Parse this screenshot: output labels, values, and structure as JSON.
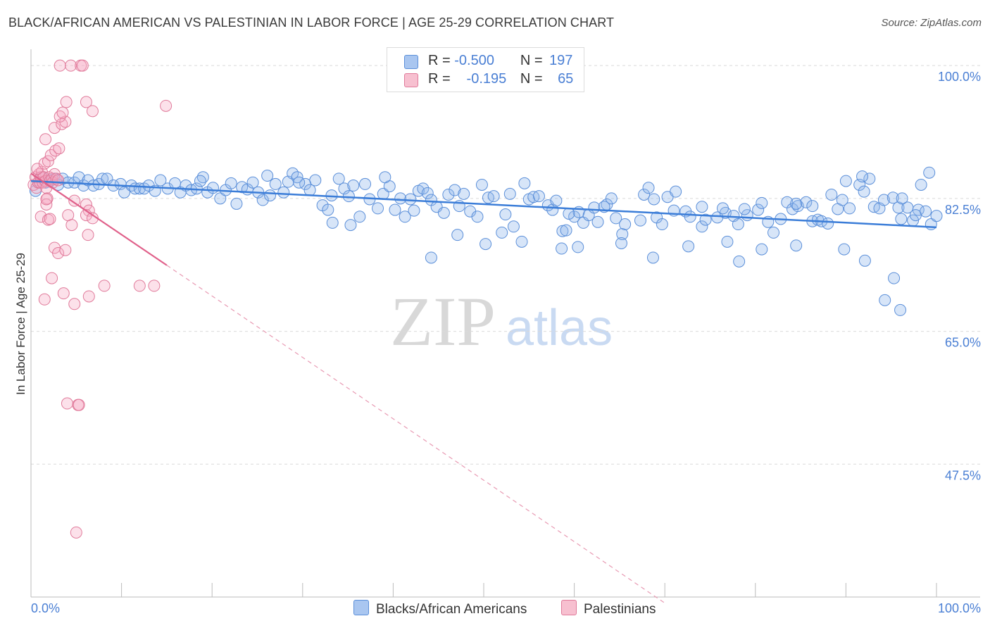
{
  "title": "BLACK/AFRICAN AMERICAN VS PALESTINIAN IN LABOR FORCE | AGE 25-29 CORRELATION CHART",
  "source": "Source: ZipAtlas.com",
  "watermark": {
    "zip": "ZIP",
    "atlas": "atlas"
  },
  "legend": {
    "r_label": "R =",
    "n_label": "N =",
    "rows": [
      {
        "r": "-0.500",
        "n": "197",
        "color": "#a9c6f0",
        "border": "#5b8fd9"
      },
      {
        "r": "-0.195",
        "n": "65",
        "color": "#f7c0d0",
        "border": "#e07a9a"
      }
    ]
  },
  "bottom_legend": [
    {
      "label": "Blacks/African Americans",
      "color": "#a9c6f0",
      "border": "#5b8fd9"
    },
    {
      "label": "Palestinians",
      "color": "#f7c0d0",
      "border": "#e07a9a"
    }
  ],
  "colors": {
    "blue": "#3b7dd8",
    "blue_fill": "rgba(140,180,235,0.35)",
    "pink": "#e0608a",
    "pink_fill": "rgba(245,170,195,0.35)",
    "tick_label": "#4a7fd4"
  },
  "chart_data": {
    "type": "scatter",
    "title": "BLACK/AFRICAN AMERICAN VS PALESTINIAN IN LABOR FORCE | AGE 25-29 CORRELATION CHART",
    "xlabel": "",
    "ylabel": "In Labor Force | Age 25-29",
    "xlim": [
      0,
      100
    ],
    "ylim": [
      30,
      101.5
    ],
    "x_tick_labels": [
      "0.0%",
      "100.0%"
    ],
    "y_ticks": [
      47.5,
      65.0,
      82.5,
      100.0
    ],
    "y_tick_labels": [
      "47.5%",
      "65.0%",
      "82.5%",
      "100.0%"
    ],
    "grid": true,
    "series": [
      {
        "name": "Blacks/African Americans",
        "trend": {
          "x": [
            0,
            100
          ],
          "y": [
            84.8,
            78.7
          ]
        },
        "points": [
          [
            0.5,
            83.5
          ],
          [
            0.8,
            84.6
          ],
          [
            1.2,
            85.3
          ],
          [
            1.6,
            84.6
          ],
          [
            2.2,
            84.9
          ],
          [
            2.6,
            85.1
          ],
          [
            3,
            84.3
          ],
          [
            3.5,
            85.1
          ],
          [
            4.1,
            84.6
          ],
          [
            4.8,
            84.6
          ],
          [
            5.3,
            85.3
          ],
          [
            5.8,
            84.2
          ],
          [
            6.3,
            84.9
          ],
          [
            6.9,
            84.2
          ],
          [
            7.5,
            84.4
          ],
          [
            7.9,
            85.1
          ],
          [
            8.4,
            85.1
          ],
          [
            9.1,
            84.2
          ],
          [
            9.9,
            84.4
          ],
          [
            10.3,
            83.3
          ],
          [
            11.1,
            84.2
          ],
          [
            11.5,
            83.8
          ],
          [
            12,
            83.8
          ],
          [
            12.5,
            83.8
          ],
          [
            13,
            84.2
          ],
          [
            13.7,
            83.5
          ],
          [
            14.3,
            84.9
          ],
          [
            15.1,
            83.8
          ],
          [
            15.9,
            84.5
          ],
          [
            16.5,
            83.3
          ],
          [
            17.1,
            84.2
          ],
          [
            17.7,
            83.6
          ],
          [
            18.3,
            83.8
          ],
          [
            19,
            85.3
          ],
          [
            19.5,
            83.3
          ],
          [
            20.1,
            83.9
          ],
          [
            20.9,
            82.5
          ],
          [
            21.5,
            83.6
          ],
          [
            22.1,
            84.5
          ],
          [
            22.7,
            81.8
          ],
          [
            23.3,
            84.0
          ],
          [
            23.9,
            83.7
          ],
          [
            24.5,
            84.6
          ],
          [
            25.1,
            83.3
          ],
          [
            25.6,
            82.3
          ],
          [
            26.4,
            82.9
          ],
          [
            27,
            84.4
          ],
          [
            27.9,
            83.3
          ],
          [
            28.4,
            84.7
          ],
          [
            28.9,
            85.8
          ],
          [
            29.4,
            85.3
          ],
          [
            30.3,
            84.4
          ],
          [
            30.8,
            83.6
          ],
          [
            31.4,
            84.9
          ],
          [
            32.2,
            81.6
          ],
          [
            32.8,
            81.0
          ],
          [
            33.2,
            82.9
          ],
          [
            34,
            85.1
          ],
          [
            34.6,
            83.8
          ],
          [
            35.1,
            82.8
          ],
          [
            35.6,
            84.2
          ],
          [
            36.3,
            80.1
          ],
          [
            36.9,
            84.4
          ],
          [
            37.4,
            82.4
          ],
          [
            38.3,
            81.2
          ],
          [
            38.9,
            83.1
          ],
          [
            39.6,
            84.1
          ],
          [
            40.2,
            81.0
          ],
          [
            40.8,
            82.5
          ],
          [
            41.3,
            80.1
          ],
          [
            41.9,
            82.4
          ],
          [
            42.3,
            80.9
          ],
          [
            42.8,
            83.5
          ],
          [
            43.3,
            83.8
          ],
          [
            43.8,
            83.2
          ],
          [
            44.2,
            82.3
          ],
          [
            44.8,
            81.4
          ],
          [
            45.6,
            80.6
          ],
          [
            46.1,
            83.0
          ],
          [
            46.8,
            83.6
          ],
          [
            47.3,
            81.5
          ],
          [
            47.8,
            83.1
          ],
          [
            48.5,
            80.8
          ],
          [
            49.3,
            80.1
          ],
          [
            50.5,
            82.6
          ],
          [
            51.1,
            82.8
          ],
          [
            52,
            78.0
          ],
          [
            52.4,
            80.4
          ],
          [
            52.9,
            83.1
          ],
          [
            53.3,
            78.8
          ],
          [
            54.5,
            84.5
          ],
          [
            55,
            82.4
          ],
          [
            55.5,
            82.7
          ],
          [
            56.1,
            82.8
          ],
          [
            57.1,
            81.6
          ],
          [
            57.6,
            81.0
          ],
          [
            58,
            82.2
          ],
          [
            58.7,
            78.2
          ],
          [
            59.1,
            78.3
          ],
          [
            60,
            80.1
          ],
          [
            60.5,
            80.7
          ],
          [
            61,
            79.3
          ],
          [
            61.6,
            80.3
          ],
          [
            62.2,
            81.3
          ],
          [
            62.6,
            79.4
          ],
          [
            63.6,
            81.7
          ],
          [
            64.1,
            82.5
          ],
          [
            64.6,
            79.9
          ],
          [
            65.3,
            77.8
          ],
          [
            65.6,
            79.1
          ],
          [
            67.3,
            79.6
          ],
          [
            67.7,
            83.0
          ],
          [
            68.2,
            83.9
          ],
          [
            69.1,
            80.0
          ],
          [
            69.7,
            79.1
          ],
          [
            70.3,
            82.7
          ],
          [
            71,
            80.9
          ],
          [
            72.3,
            80.8
          ],
          [
            72.8,
            80.1
          ],
          [
            74.1,
            78.8
          ],
          [
            74.5,
            79.7
          ],
          [
            75.8,
            80.0
          ],
          [
            76.7,
            80.6
          ],
          [
            77.6,
            80.2
          ],
          [
            78.1,
            79.1
          ],
          [
            79.1,
            80.3
          ],
          [
            80.3,
            81.0
          ],
          [
            80.7,
            81.9
          ],
          [
            81.4,
            79.4
          ],
          [
            82,
            78.0
          ],
          [
            82.8,
            79.8
          ],
          [
            83.5,
            82.0
          ],
          [
            84.1,
            81.1
          ],
          [
            84.7,
            81.5
          ],
          [
            85.6,
            82.0
          ],
          [
            86.3,
            79.5
          ],
          [
            86.9,
            79.7
          ],
          [
            87.3,
            79.5
          ],
          [
            88,
            79.2
          ],
          [
            89.1,
            81.1
          ],
          [
            89.6,
            82.3
          ],
          [
            90,
            84.8
          ],
          [
            90.4,
            81.2
          ],
          [
            91.5,
            84.3
          ],
          [
            92,
            83.4
          ],
          [
            92.6,
            85.1
          ],
          [
            93.1,
            81.4
          ],
          [
            93.7,
            81.2
          ],
          [
            94.2,
            82.3
          ],
          [
            95.2,
            82.6
          ],
          [
            95.8,
            81.3
          ],
          [
            96.1,
            79.8
          ],
          [
            96.8,
            81.3
          ],
          [
            97.4,
            79.6
          ],
          [
            98,
            81.0
          ],
          [
            98.8,
            80.8
          ],
          [
            99.4,
            79.1
          ],
          [
            100,
            80.2
          ],
          [
            18.7,
            84.8
          ],
          [
            26.1,
            85.5
          ],
          [
            29.6,
            84.6
          ],
          [
            39.1,
            85.3
          ],
          [
            49.8,
            84.3
          ],
          [
            63.3,
            81.4
          ],
          [
            68.8,
            82.4
          ],
          [
            71.2,
            83.4
          ],
          [
            74.1,
            81.4
          ],
          [
            76.4,
            81.2
          ],
          [
            78.8,
            81.1
          ],
          [
            84.5,
            81.8
          ],
          [
            86.3,
            81.5
          ],
          [
            88.4,
            83.0
          ],
          [
            91.8,
            85.4
          ],
          [
            96.2,
            82.5
          ],
          [
            98.3,
            84.3
          ],
          [
            97.7,
            80.3
          ],
          [
            99.2,
            85.9
          ],
          [
            59.4,
            80.5
          ],
          [
            54.2,
            76.8
          ],
          [
            58.6,
            75.9
          ],
          [
            60.4,
            76.1
          ],
          [
            65.2,
            76.6
          ],
          [
            68.7,
            74.7
          ],
          [
            72.6,
            76.2
          ],
          [
            76.9,
            76.8
          ],
          [
            78.2,
            74.2
          ],
          [
            80.7,
            75.8
          ],
          [
            84.5,
            76.3
          ],
          [
            89.8,
            75.8
          ],
          [
            92.1,
            74.3
          ],
          [
            95.3,
            72.0
          ],
          [
            50.2,
            76.5
          ],
          [
            47.1,
            77.7
          ],
          [
            44.2,
            74.7
          ],
          [
            35.3,
            79.0
          ],
          [
            33.3,
            79.3
          ],
          [
            96,
            67.8
          ],
          [
            94.3,
            69.1
          ]
        ]
      },
      {
        "name": "Palestinians",
        "trend": {
          "x": [
            0,
            15
          ],
          "y": [
            85.8,
            73.7
          ]
        },
        "trend_extension": {
          "x": [
            15,
            70
          ],
          "y": [
            73.7,
            29.2
          ]
        },
        "points": [
          [
            0.3,
            84.3
          ],
          [
            0.5,
            85.3
          ],
          [
            0.6,
            83.9
          ],
          [
            0.8,
            84.6
          ],
          [
            0.9,
            85.7
          ],
          [
            1.0,
            84.6
          ],
          [
            1.1,
            85.3
          ],
          [
            1.2,
            86.0
          ],
          [
            1.3,
            84.6
          ],
          [
            1.4,
            85.3
          ],
          [
            1.6,
            84.8
          ],
          [
            1.7,
            83.9
          ],
          [
            1.8,
            82.5
          ],
          [
            2.0,
            85.3
          ],
          [
            2.1,
            84.8
          ],
          [
            2.3,
            85.1
          ],
          [
            2.4,
            84.6
          ],
          [
            2.6,
            85.7
          ],
          [
            2.8,
            85.1
          ],
          [
            3.0,
            84.9
          ],
          [
            0.7,
            86.4
          ],
          [
            1.5,
            87.1
          ],
          [
            1.9,
            87.4
          ],
          [
            2.2,
            88.2
          ],
          [
            2.7,
            88.8
          ],
          [
            3.1,
            89.1
          ],
          [
            1.6,
            90.3
          ],
          [
            2.6,
            91.8
          ],
          [
            3.4,
            92.3
          ],
          [
            3.8,
            92.6
          ],
          [
            3.2,
            93.3
          ],
          [
            3.5,
            93.8
          ],
          [
            3.9,
            95.2
          ],
          [
            6.1,
            95.2
          ],
          [
            6.8,
            94.0
          ],
          [
            14.9,
            94.7
          ],
          [
            3.2,
            100.0
          ],
          [
            4.4,
            100.0
          ],
          [
            5.5,
            100.0
          ],
          [
            5.7,
            100.0
          ],
          [
            1.1,
            80.1
          ],
          [
            1.9,
            79.7
          ],
          [
            2.1,
            79.8
          ],
          [
            1.7,
            81.7
          ],
          [
            1.7,
            82.4
          ],
          [
            4.1,
            80.3
          ],
          [
            4.5,
            79.0
          ],
          [
            6.1,
            81.7
          ],
          [
            6.4,
            80.9
          ],
          [
            6.1,
            80.3
          ],
          [
            4.8,
            82.2
          ],
          [
            6.8,
            79.9
          ],
          [
            6.3,
            77.7
          ],
          [
            2.6,
            76.0
          ],
          [
            3.0,
            75.3
          ],
          [
            3.8,
            75.7
          ],
          [
            2.3,
            72.0
          ],
          [
            3.6,
            70.0
          ],
          [
            6.4,
            69.6
          ],
          [
            8.1,
            71.0
          ],
          [
            12.0,
            71.0
          ],
          [
            13.6,
            71.0
          ],
          [
            4.8,
            68.6
          ],
          [
            1.5,
            69.2
          ],
          [
            4.0,
            55.5
          ],
          [
            5.2,
            55.3
          ],
          [
            5.3,
            55.3
          ],
          [
            5.0,
            38.5
          ]
        ]
      }
    ]
  }
}
